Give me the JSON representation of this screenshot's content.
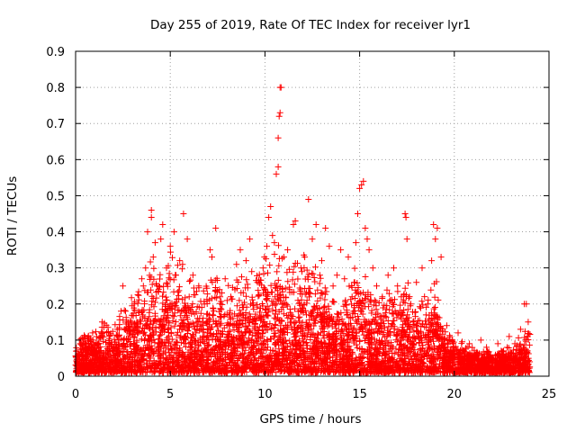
{
  "chart_data": {
    "type": "scatter",
    "title": "Day 255 of 2019, Rate Of TEC Index for receiver lyr1",
    "xlabel": "GPS time / hours",
    "ylabel": "ROTI / TECUs",
    "xlim": [
      0,
      25
    ],
    "ylim": [
      0,
      0.9
    ],
    "xticks": [
      0,
      5,
      10,
      15,
      20,
      25
    ],
    "xtick_labels": [
      "0",
      "5",
      "10",
      "15",
      "20",
      "25"
    ],
    "yticks": [
      0,
      0.1,
      0.2,
      0.3,
      0.4,
      0.5,
      0.6,
      0.7,
      0.8,
      0.9
    ],
    "ytick_labels": [
      "0",
      "0.1",
      "0.2",
      "0.3",
      "0.4",
      "0.5",
      "0.6",
      "0.7",
      "0.8",
      "0.9"
    ],
    "grid": true,
    "marker": "+",
    "color": "#ff0000",
    "series": [
      {
        "name": "lyr1",
        "points": [
          [
            0.05,
            0.07
          ],
          [
            0.1,
            0.04
          ],
          [
            0.2,
            0.1
          ],
          [
            0.3,
            0.06
          ],
          [
            0.5,
            0.03
          ],
          [
            0.7,
            0.08
          ],
          [
            0.9,
            0.12
          ],
          [
            1.0,
            0.05
          ],
          [
            1.2,
            0.09
          ],
          [
            1.4,
            0.15
          ],
          [
            1.6,
            0.06
          ],
          [
            1.8,
            0.11
          ],
          [
            2.0,
            0.04
          ],
          [
            2.2,
            0.13
          ],
          [
            2.4,
            0.18
          ],
          [
            2.5,
            0.25
          ],
          [
            2.7,
            0.1
          ],
          [
            2.9,
            0.15
          ],
          [
            3.1,
            0.2
          ],
          [
            3.3,
            0.12
          ],
          [
            3.5,
            0.27
          ],
          [
            3.7,
            0.3
          ],
          [
            3.8,
            0.4
          ],
          [
            4.0,
            0.46
          ],
          [
            4.0,
            0.44
          ],
          [
            4.1,
            0.33
          ],
          [
            4.2,
            0.37
          ],
          [
            4.3,
            0.25
          ],
          [
            4.5,
            0.38
          ],
          [
            4.6,
            0.42
          ],
          [
            4.8,
            0.3
          ],
          [
            5.0,
            0.36
          ],
          [
            5.2,
            0.4
          ],
          [
            5.3,
            0.28
          ],
          [
            5.5,
            0.32
          ],
          [
            5.7,
            0.45
          ],
          [
            5.9,
            0.38
          ],
          [
            6.0,
            0.22
          ],
          [
            6.2,
            0.28
          ],
          [
            6.5,
            0.25
          ],
          [
            6.8,
            0.2
          ],
          [
            7.1,
            0.35
          ],
          [
            7.2,
            0.33
          ],
          [
            7.4,
            0.41
          ],
          [
            7.6,
            0.24
          ],
          [
            7.9,
            0.27
          ],
          [
            8.2,
            0.22
          ],
          [
            8.5,
            0.31
          ],
          [
            8.7,
            0.35
          ],
          [
            9.0,
            0.32
          ],
          [
            9.2,
            0.38
          ],
          [
            9.3,
            0.29
          ],
          [
            9.6,
            0.26
          ],
          [
            9.9,
            0.3
          ],
          [
            10.1,
            0.36
          ],
          [
            10.2,
            0.44
          ],
          [
            10.3,
            0.47
          ],
          [
            10.4,
            0.39
          ],
          [
            10.5,
            0.37
          ],
          [
            10.6,
            0.56
          ],
          [
            10.7,
            0.58
          ],
          [
            10.7,
            0.66
          ],
          [
            10.75,
            0.72
          ],
          [
            10.8,
            0.73
          ],
          [
            10.8,
            0.8
          ],
          [
            10.85,
            0.8
          ],
          [
            11.0,
            0.33
          ],
          [
            11.2,
            0.35
          ],
          [
            11.5,
            0.42
          ],
          [
            11.6,
            0.43
          ],
          [
            11.9,
            0.3
          ],
          [
            12.1,
            0.33
          ],
          [
            12.3,
            0.49
          ],
          [
            12.5,
            0.38
          ],
          [
            12.7,
            0.42
          ],
          [
            12.9,
            0.28
          ],
          [
            13.0,
            0.32
          ],
          [
            13.2,
            0.41
          ],
          [
            13.4,
            0.36
          ],
          [
            13.6,
            0.25
          ],
          [
            13.8,
            0.28
          ],
          [
            14.0,
            0.35
          ],
          [
            14.2,
            0.27
          ],
          [
            14.4,
            0.33
          ],
          [
            14.6,
            0.22
          ],
          [
            14.8,
            0.37
          ],
          [
            14.9,
            0.45
          ],
          [
            15.0,
            0.52
          ],
          [
            15.1,
            0.53
          ],
          [
            15.2,
            0.54
          ],
          [
            15.3,
            0.41
          ],
          [
            15.4,
            0.38
          ],
          [
            15.5,
            0.35
          ],
          [
            15.7,
            0.3
          ],
          [
            15.9,
            0.25
          ],
          [
            16.2,
            0.22
          ],
          [
            16.5,
            0.28
          ],
          [
            16.8,
            0.3
          ],
          [
            17.0,
            0.25
          ],
          [
            17.2,
            0.22
          ],
          [
            17.4,
            0.45
          ],
          [
            17.45,
            0.44
          ],
          [
            17.5,
            0.38
          ],
          [
            17.7,
            0.2
          ],
          [
            18.0,
            0.26
          ],
          [
            18.3,
            0.3
          ],
          [
            18.6,
            0.2
          ],
          [
            18.8,
            0.32
          ],
          [
            18.9,
            0.42
          ],
          [
            19.0,
            0.38
          ],
          [
            19.1,
            0.41
          ],
          [
            19.3,
            0.33
          ],
          [
            19.6,
            0.14
          ],
          [
            19.9,
            0.1
          ],
          [
            20.2,
            0.12
          ],
          [
            20.5,
            0.07
          ],
          [
            20.8,
            0.09
          ],
          [
            21.1,
            0.06
          ],
          [
            21.4,
            0.1
          ],
          [
            21.7,
            0.08
          ],
          [
            22.0,
            0.05
          ],
          [
            22.3,
            0.09
          ],
          [
            22.6,
            0.07
          ],
          [
            22.9,
            0.11
          ],
          [
            23.2,
            0.09
          ],
          [
            23.5,
            0.13
          ],
          [
            23.7,
            0.2
          ],
          [
            23.8,
            0.2
          ],
          [
            23.9,
            0.15
          ]
        ]
      }
    ],
    "envelope": [
      [
        0,
        0.07
      ],
      [
        0.5,
        0.1
      ],
      [
        1.0,
        0.09
      ],
      [
        1.5,
        0.13
      ],
      [
        2.0,
        0.11
      ],
      [
        2.5,
        0.16
      ],
      [
        3.0,
        0.2
      ],
      [
        3.5,
        0.22
      ],
      [
        4.0,
        0.28
      ],
      [
        4.5,
        0.26
      ],
      [
        5.0,
        0.3
      ],
      [
        5.5,
        0.27
      ],
      [
        6.0,
        0.24
      ],
      [
        6.5,
        0.2
      ],
      [
        7.0,
        0.22
      ],
      [
        7.5,
        0.24
      ],
      [
        8.0,
        0.2
      ],
      [
        8.5,
        0.25
      ],
      [
        9.0,
        0.24
      ],
      [
        9.5,
        0.26
      ],
      [
        10.0,
        0.3
      ],
      [
        10.5,
        0.33
      ],
      [
        11.0,
        0.29
      ],
      [
        11.5,
        0.27
      ],
      [
        12.0,
        0.29
      ],
      [
        12.5,
        0.27
      ],
      [
        13.0,
        0.24
      ],
      [
        13.5,
        0.18
      ],
      [
        14.0,
        0.16
      ],
      [
        14.5,
        0.24
      ],
      [
        15.0,
        0.3
      ],
      [
        15.5,
        0.23
      ],
      [
        16.0,
        0.2
      ],
      [
        16.5,
        0.22
      ],
      [
        17.0,
        0.2
      ],
      [
        17.5,
        0.22
      ],
      [
        18.0,
        0.18
      ],
      [
        18.5,
        0.2
      ],
      [
        19.0,
        0.24
      ],
      [
        19.5,
        0.11
      ],
      [
        20.0,
        0.08
      ],
      [
        20.5,
        0.07
      ],
      [
        21.0,
        0.06
      ],
      [
        21.5,
        0.06
      ],
      [
        22.0,
        0.05
      ],
      [
        22.5,
        0.06
      ],
      [
        23.0,
        0.07
      ],
      [
        23.5,
        0.09
      ],
      [
        24.0,
        0.12
      ]
    ]
  }
}
